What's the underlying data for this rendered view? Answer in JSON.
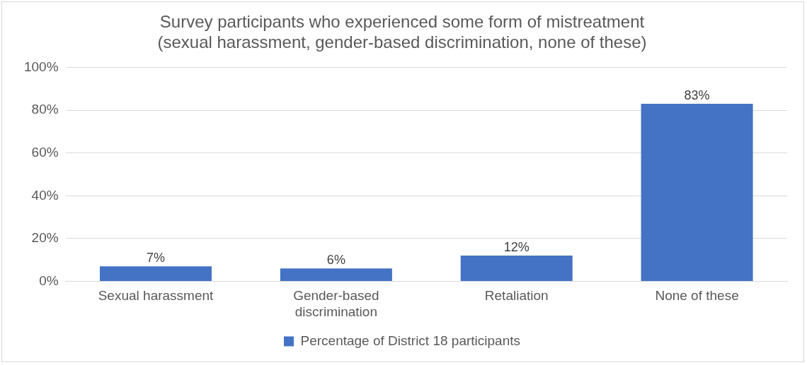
{
  "chart_data": {
    "type": "bar",
    "title": "Survey participants who experienced some form of mistreatment (sexual harassment, gender-based discrimination, none of these)",
    "categories": [
      "Sexual harassment",
      "Gender-based discrimination",
      "Retaliation",
      "None of these"
    ],
    "series": [
      {
        "name": "Percentage of District 18 participants",
        "color": "#4472c4",
        "values": [
          7,
          6,
          12,
          83
        ],
        "value_labels": [
          "7%",
          "6%",
          "12%",
          "83%"
        ]
      }
    ],
    "ylim": [
      0,
      100
    ],
    "yticks": [
      {
        "value": 0,
        "label": "0%"
      },
      {
        "value": 20,
        "label": "20%"
      },
      {
        "value": 40,
        "label": "40%"
      },
      {
        "value": 60,
        "label": "60%"
      },
      {
        "value": 80,
        "label": "80%"
      },
      {
        "value": 100,
        "label": "100%"
      }
    ],
    "grid": "y",
    "legend": "bottom"
  }
}
